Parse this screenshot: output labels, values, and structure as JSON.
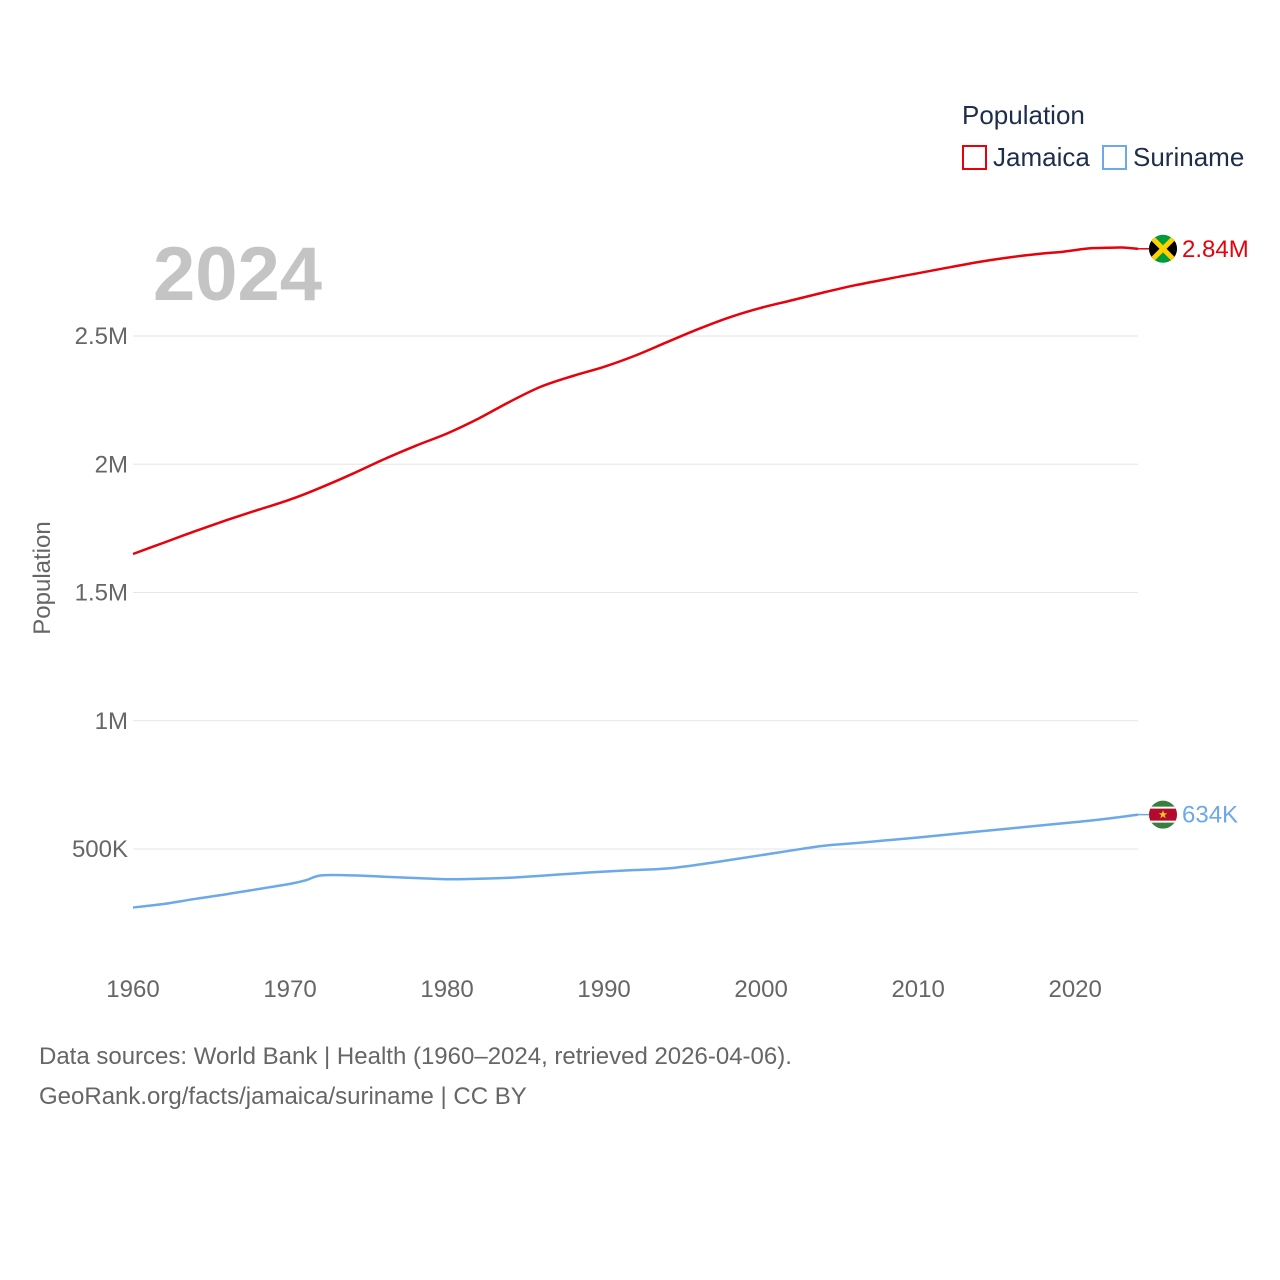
{
  "chart_data": {
    "type": "line",
    "title": "Population",
    "year_label": "2024",
    "ylabel": "Population",
    "xlabel": "",
    "xlim": [
      1960,
      2024
    ],
    "ylim": [
      230000,
      2960000
    ],
    "x_ticks": [
      {
        "value": 1960,
        "label": "1960"
      },
      {
        "value": 1970,
        "label": "1970"
      },
      {
        "value": 1980,
        "label": "1980"
      },
      {
        "value": 1990,
        "label": "1990"
      },
      {
        "value": 2000,
        "label": "2000"
      },
      {
        "value": 2010,
        "label": "2010"
      },
      {
        "value": 2020,
        "label": "2020"
      }
    ],
    "y_ticks": [
      {
        "value": 500000,
        "label": "500K"
      },
      {
        "value": 1000000,
        "label": "1M"
      },
      {
        "value": 1500000,
        "label": "1.5M"
      },
      {
        "value": 2000000,
        "label": "2M"
      },
      {
        "value": 2500000,
        "label": "2.5M"
      }
    ],
    "legend": {
      "title": "Population",
      "position": "top-right"
    },
    "series": [
      {
        "name": "Jamaica",
        "color": "#e8000b",
        "flag_icon": "jamaica-flag-icon",
        "end_label": "2.84M",
        "x": [
          1960,
          1962,
          1964,
          1966,
          1968,
          1970,
          1972,
          1974,
          1976,
          1978,
          1980,
          1982,
          1984,
          1986,
          1988,
          1990,
          1992,
          1994,
          1996,
          1998,
          2000,
          2002,
          2004,
          2006,
          2008,
          2010,
          2012,
          2014,
          2016,
          2018,
          2019,
          2020,
          2021,
          2022,
          2023,
          2024
        ],
        "values": [
          1650000,
          1695000,
          1740000,
          1783000,
          1823000,
          1862000,
          1910000,
          1963000,
          2020000,
          2072000,
          2120000,
          2178000,
          2244000,
          2303000,
          2344000,
          2380000,
          2424000,
          2476000,
          2527000,
          2573000,
          2610000,
          2640000,
          2670000,
          2698000,
          2722000,
          2745000,
          2768000,
          2790000,
          2808000,
          2822000,
          2827000,
          2835000,
          2842000,
          2844000,
          2845000,
          2840000
        ]
      },
      {
        "name": "Suriname",
        "color": "#6ba9e8",
        "flag_icon": "suriname-flag-icon",
        "end_label": "634K",
        "x": [
          1960,
          1962,
          1964,
          1966,
          1968,
          1970,
          1971,
          1972,
          1974,
          1976,
          1978,
          1980,
          1982,
          1984,
          1986,
          1988,
          1990,
          1992,
          1994,
          1996,
          1998,
          2000,
          2002,
          2004,
          2006,
          2008,
          2010,
          2012,
          2014,
          2016,
          2018,
          2020,
          2022,
          2024
        ],
        "values": [
          272000,
          286000,
          306000,
          324000,
          344000,
          364000,
          378000,
          397000,
          397000,
          392000,
          387000,
          382000,
          384000,
          388000,
          396000,
          404000,
          412000,
          418000,
          424000,
          439000,
          457000,
          476000,
          495000,
          513000,
          523000,
          534000,
          545000,
          557000,
          569000,
          581000,
          593000,
          605000,
          618000,
          634000
        ]
      }
    ]
  },
  "footer": {
    "line1": "Data sources: World Bank | Health (1960–2024, retrieved 2026-04-06).",
    "line2": "GeoRank.org/facts/jamaica/suriname | CC BY"
  }
}
